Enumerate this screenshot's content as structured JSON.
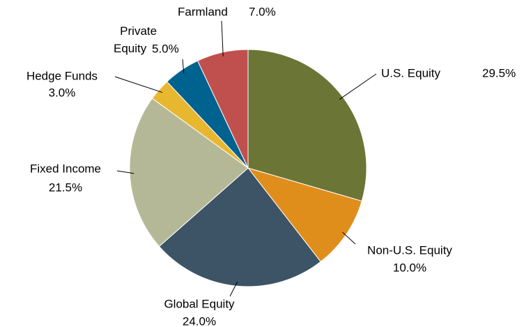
{
  "chart_data": {
    "type": "pie",
    "categories": [
      "U.S. Equity",
      "Non-U.S. Equity",
      "Global Equity",
      "Fixed Income",
      "Hedge Funds",
      "Private Equity",
      "Farmland"
    ],
    "values": [
      29.5,
      10.0,
      24.0,
      21.5,
      3.0,
      5.0,
      7.0
    ],
    "value_labels": [
      "29.5%",
      "10.0%",
      "24.0%",
      "21.5%",
      "3.0%",
      "5.0%",
      "7.0%"
    ],
    "colors": [
      "#6b7536",
      "#e08e1b",
      "#3d5366",
      "#b5b896",
      "#e8b730",
      "#00628f",
      "#c0504d"
    ]
  }
}
